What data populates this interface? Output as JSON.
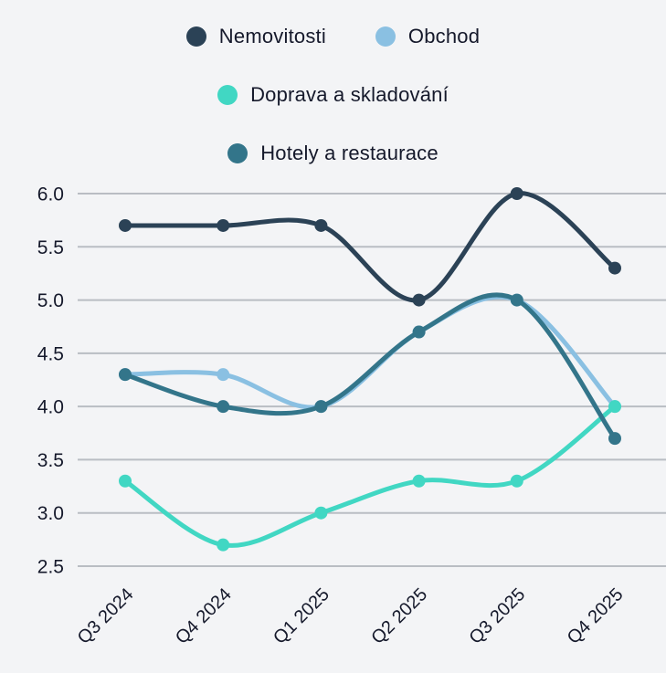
{
  "chart_data": {
    "type": "line",
    "title": "",
    "xlabel": "",
    "ylabel": "",
    "categories": [
      "Q3 2024",
      "Q4 2024",
      "Q1 2025",
      "Q2 2025",
      "Q3 2025",
      "Q4 2025"
    ],
    "series": [
      {
        "name": "Nemovitosti",
        "color": "#2b4256",
        "values": [
          5.7,
          5.7,
          5.7,
          5.0,
          6.0,
          5.3
        ]
      },
      {
        "name": "Obchod",
        "color": "#8ac0e2",
        "values": [
          4.3,
          4.3,
          4.0,
          4.7,
          5.0,
          4.0
        ]
      },
      {
        "name": "Doprava a skladování",
        "color": "#41d7c3",
        "values": [
          3.3,
          2.7,
          3.0,
          3.3,
          3.3,
          4.0
        ]
      },
      {
        "name": "Hotely a restaurace",
        "color": "#33758a",
        "values": [
          4.3,
          4.0,
          4.0,
          4.7,
          5.0,
          3.7
        ]
      }
    ],
    "yticks": [
      "6.0",
      "5.5",
      "5.0",
      "4.5",
      "4.0",
      "3.5",
      "3.0",
      "2.5"
    ],
    "ylim": [
      2.5,
      6.0
    ],
    "grid": true,
    "legend_position": "top",
    "curve": "smooth"
  },
  "colors": {
    "background": "#f3f4f6",
    "gridline": "#b9bdc3",
    "text": "#15192b"
  }
}
